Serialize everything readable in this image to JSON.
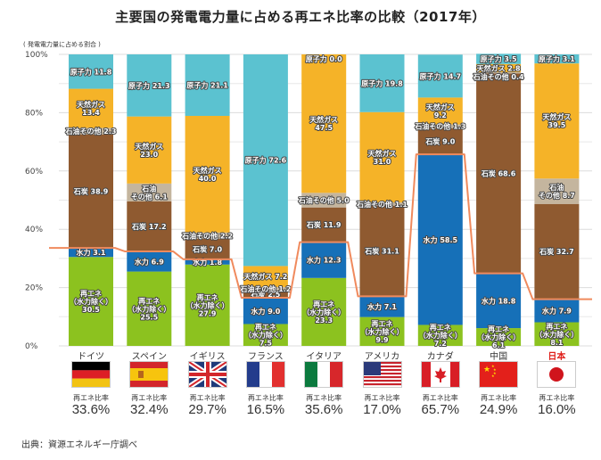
{
  "title": "主要国の発電電力量に占める再エネ比率の比較（2017年）",
  "unit_label": "( 発電電力量に占める割合 )",
  "source": "出典：資源エネルギー庁調べ",
  "ratio_label": "再エネ比率",
  "chart_data": {
    "type": "bar",
    "stacked": true,
    "title": "主要国の発電電力量に占める再エネ比率の比較（2017年）",
    "ylabel": "( 発電電力量に占める割合 )",
    "ylim": [
      0,
      100
    ],
    "yticks": [
      "0%",
      "20%",
      "40%",
      "60%",
      "80%",
      "100%"
    ],
    "grid": true,
    "categories": [
      "ドイツ",
      "スペイン",
      "イギリス",
      "フランス",
      "イタリア",
      "アメリカ",
      "カナダ",
      "中国",
      "日本"
    ],
    "highlight_category": "日本",
    "series": [
      {
        "key": "renew",
        "name": "再エネ（水力除く）",
        "color": "#8cc21f",
        "values": [
          30.5,
          25.5,
          27.9,
          7.5,
          23.3,
          9.9,
          7.2,
          6.1,
          8.1
        ]
      },
      {
        "key": "hydro",
        "name": "水力",
        "color": "#1670b8",
        "values": [
          3.1,
          6.9,
          1.8,
          9.0,
          12.3,
          7.1,
          58.5,
          18.8,
          7.9
        ]
      },
      {
        "key": "coal",
        "name": "石炭",
        "color": "#8f5a30",
        "values": [
          38.9,
          17.2,
          7.0,
          2.5,
          11.9,
          31.1,
          9.0,
          68.6,
          32.7
        ]
      },
      {
        "key": "oil",
        "name": "石油その他",
        "color": "#c4b59e",
        "values": [
          2.3,
          6.1,
          2.2,
          1.2,
          5.0,
          1.1,
          1.3,
          0.4,
          8.7
        ]
      },
      {
        "key": "gas",
        "name": "天然ガス",
        "color": "#f5b328",
        "values": [
          13.4,
          23.0,
          40.0,
          7.2,
          47.5,
          31.0,
          9.2,
          2.8,
          39.5
        ]
      },
      {
        "key": "nuclear",
        "name": "原子力",
        "color": "#5bc2d0",
        "values": [
          11.8,
          21.3,
          21.1,
          72.6,
          0.0,
          19.8,
          14.7,
          3.5,
          3.1
        ]
      }
    ],
    "segment_labels": [
      [
        [
          "再エネ",
          "（水力除く）",
          "30.5"
        ],
        [
          "水力 3.1"
        ],
        [
          "石炭 38.9"
        ],
        [
          "石油その他 2.3"
        ],
        [
          "天然ガス",
          "13.4"
        ],
        [
          "原子力 11.8"
        ]
      ],
      [
        [
          "再エネ",
          "（水力除く）",
          "25.5"
        ],
        [
          "水力 6.9"
        ],
        [
          "石炭 17.2"
        ],
        [
          "石油",
          "その他 6.1"
        ],
        [
          "天然ガス",
          "23.0"
        ],
        [
          "原子力 21.3"
        ]
      ],
      [
        [
          "再エネ",
          "（水力除く）",
          "27.9"
        ],
        [
          "水力 1.8"
        ],
        [
          "石炭 7.0"
        ],
        [
          "石油その他 2.2"
        ],
        [
          "天然ガス",
          "40.0"
        ],
        [
          "原子力 21.1"
        ]
      ],
      [
        [
          "再エネ",
          "（水力除く）",
          "7.5"
        ],
        [
          "水力 9.0"
        ],
        [
          "石炭 2.5"
        ],
        [
          "石油その他 1.2"
        ],
        [
          "天然ガス 7.2"
        ],
        [
          "原子力 72.6"
        ]
      ],
      [
        [
          "再エネ",
          "（水力除く）",
          "23.3"
        ],
        [
          "水力 12.3"
        ],
        [
          "石炭 11.9"
        ],
        [
          "石油その他 5.0"
        ],
        [
          "天然ガス",
          "47.5"
        ],
        [
          "原子力 0.0"
        ]
      ],
      [
        [
          "再エネ",
          "（水力除く）",
          "9.9"
        ],
        [
          "水力 7.1"
        ],
        [
          "石炭 31.1"
        ],
        [
          "石油その他 1.1"
        ],
        [
          "天然ガス",
          "31.0"
        ],
        [
          "原子力 19.8"
        ]
      ],
      [
        [
          "再エネ",
          "（水力除く）",
          "7.2"
        ],
        [
          "水力 58.5"
        ],
        [
          "石炭 9.0"
        ],
        [
          "石油その他 1.3"
        ],
        [
          "天然ガス",
          "9.2"
        ],
        [
          "原子力 14.7"
        ]
      ],
      [
        [
          "再エネ",
          "（水力除く）",
          "6.1"
        ],
        [
          "水力 18.8"
        ],
        [
          "石炭 68.6"
        ],
        [
          "石油その他 0.4"
        ],
        [
          "天然ガス 2.8"
        ],
        [
          "原子力 3.5"
        ]
      ],
      [
        [
          "再エネ",
          "（水力除く）",
          "8.1"
        ],
        [
          "水力 7.9"
        ],
        [
          "石炭 32.7"
        ],
        [
          "石油",
          "その他 8.7"
        ],
        [
          "天然ガス",
          "39.5"
        ],
        [
          "原子力 3.1"
        ]
      ]
    ],
    "renewable_ratio": [
      33.6,
      32.4,
      29.7,
      16.5,
      35.6,
      17.0,
      65.7,
      24.9,
      16.0
    ],
    "renewable_ratio_labels": [
      "33.6%",
      "32.4%",
      "29.7%",
      "16.5%",
      "35.6%",
      "17.0%",
      "65.7%",
      "24.9%",
      "16.0%"
    ],
    "annotation": "Orange line traces the renewable share (再エネ + 水力) across countries"
  },
  "countries": [
    {
      "name": "ドイツ",
      "flag": "germany-flag"
    },
    {
      "name": "スペイン",
      "flag": "spain-flag"
    },
    {
      "name": "イギリス",
      "flag": "uk-flag"
    },
    {
      "name": "フランス",
      "flag": "france-flag"
    },
    {
      "name": "イタリア",
      "flag": "italy-flag"
    },
    {
      "name": "アメリカ",
      "flag": "usa-flag"
    },
    {
      "name": "カナダ",
      "flag": "canada-flag"
    },
    {
      "name": "中国",
      "flag": "china-flag"
    },
    {
      "name": "日本",
      "flag": "japan-flag"
    }
  ],
  "colors": {
    "renew_line": "#f08a5d",
    "highlight_text": "#e0201b"
  }
}
